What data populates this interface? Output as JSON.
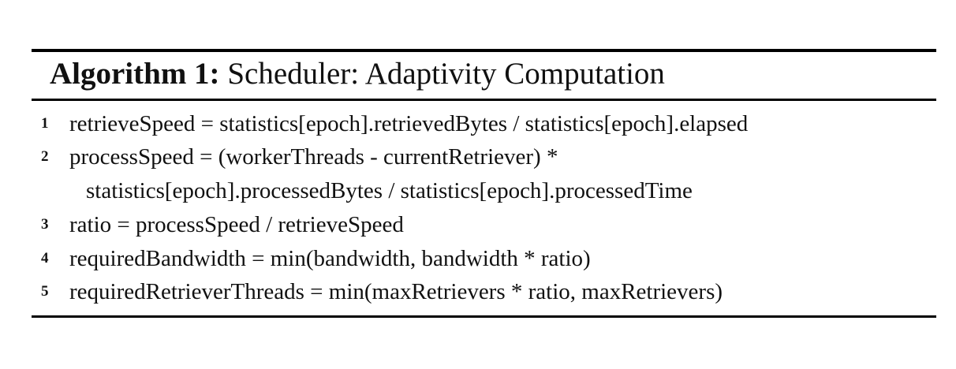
{
  "algorithm": {
    "label": "Algorithm 1:",
    "title": " Scheduler: Adaptivity Computation",
    "lines": [
      {
        "number": "1",
        "text": "retrieveSpeed = statistics[epoch].retrievedBytes / statistics[epoch].elapsed"
      },
      {
        "number": "2",
        "text": "processSpeed = (workerThreads - currentRetriever) *",
        "continuation": "statistics[epoch].processedBytes / statistics[epoch].processedTime"
      },
      {
        "number": "3",
        "text": "ratio = processSpeed / retrieveSpeed"
      },
      {
        "number": "4",
        "text": "requiredBandwidth = min(bandwidth, bandwidth * ratio)"
      },
      {
        "number": "5",
        "text": "requiredRetrieverThreads = min(maxRetrievers * ratio, maxRetrievers)"
      }
    ]
  }
}
